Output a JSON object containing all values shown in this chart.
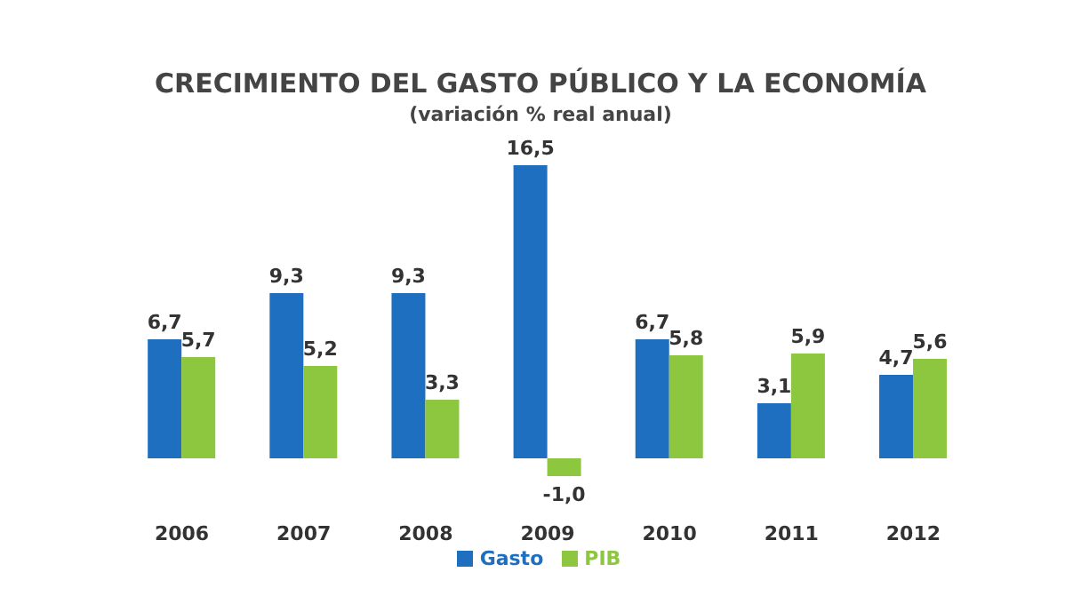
{
  "chart_data": {
    "type": "bar",
    "title": "CRECIMIENTO DEL GASTO PÚBLICO Y LA ECONOMÍA",
    "subtitle": "(variación % real anual)",
    "categories": [
      "2006",
      "2007",
      "2008",
      "2009",
      "2010",
      "2011",
      "2012"
    ],
    "series": [
      {
        "name": "Gasto",
        "color": "#1f6fc0",
        "values": [
          6.7,
          9.3,
          9.3,
          16.5,
          6.7,
          3.1,
          4.7
        ],
        "value_labels": [
          "6,7",
          "9,3",
          "9,3",
          "16,5",
          "6,7",
          "3,1",
          "4,7"
        ]
      },
      {
        "name": "PIB",
        "color": "#8dc63f",
        "values": [
          5.7,
          5.2,
          3.3,
          -1.0,
          5.8,
          5.9,
          5.6
        ],
        "value_labels": [
          "5,7",
          "5,2",
          "3,3",
          "-1,0",
          "5,8",
          "5,9",
          "5,6"
        ]
      }
    ],
    "legend": "bottom",
    "grid": false
  }
}
